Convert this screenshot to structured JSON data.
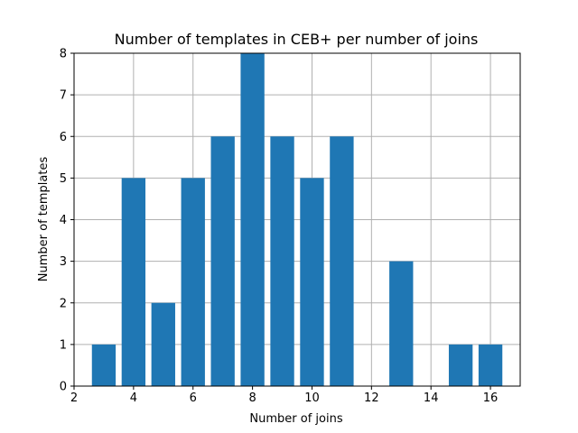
{
  "chart_data": {
    "type": "bar",
    "title": "Number of templates in CEB+ per number of joins",
    "xlabel": "Number of joins",
    "ylabel": "Number of templates",
    "x": [
      3,
      4,
      5,
      6,
      7,
      8,
      9,
      10,
      11,
      13,
      15,
      16
    ],
    "values": [
      1,
      5,
      2,
      5,
      6,
      8,
      6,
      5,
      6,
      3,
      1,
      1
    ],
    "xlim": [
      2,
      17
    ],
    "ylim": [
      0,
      8
    ],
    "xticks": [
      "2",
      "4",
      "6",
      "8",
      "10",
      "12",
      "14",
      "16"
    ],
    "yticks": [
      "0",
      "1",
      "2",
      "3",
      "4",
      "5",
      "6",
      "7",
      "8"
    ],
    "grid": true,
    "legend": "none",
    "colors": {
      "bar": "#1f77b4",
      "grid": "#b0b0b0",
      "axis": "#000000"
    }
  }
}
